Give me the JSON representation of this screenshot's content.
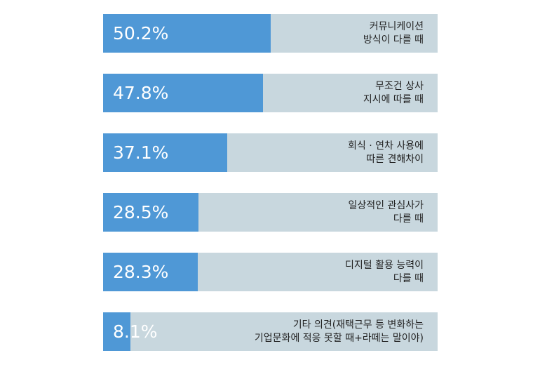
{
  "chart_data": {
    "type": "bar",
    "orientation": "horizontal",
    "xlim": [
      0,
      100
    ],
    "unit": "%",
    "categories": [
      [
        "커뮤니케이션",
        "방식이 다를 때"
      ],
      [
        "무조건 상사",
        "지시에 따를 때"
      ],
      [
        "회식 · 연차 사용에",
        "따른 견해차이"
      ],
      [
        "일상적인 관심사가",
        "다를 때"
      ],
      [
        "디지털 활용 능력이",
        "다를 때"
      ],
      [
        "기타 의견(재택근무 등 변화하는",
        "기업문화에 적응 못할 때+라떼는 말이야)"
      ]
    ],
    "values": [
      50.2,
      47.8,
      37.1,
      28.5,
      28.3,
      8.1
    ],
    "value_labels": [
      "50.2%",
      "47.8%",
      "37.1%",
      "28.5%",
      "28.3%",
      "8.1%"
    ],
    "colors": {
      "bar": "#4f98d6",
      "track": "#c8d7de"
    }
  }
}
